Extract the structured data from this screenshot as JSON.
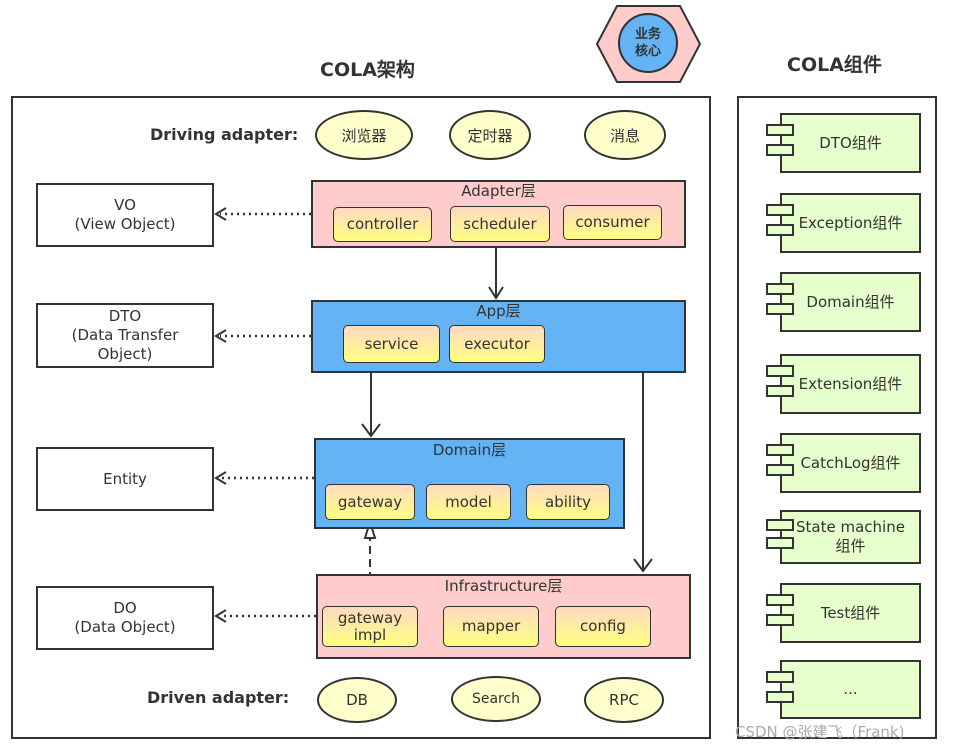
{
  "architecture": {
    "title": "COLA架构",
    "core_badge": "业务\n核心",
    "driving_label": "Driving adapter:",
    "driving": [
      "浏览器",
      "定时器",
      "消息"
    ],
    "driven_label": "Driven adapter:",
    "driven": [
      "DB",
      "Search",
      "RPC"
    ],
    "layers": [
      {
        "title": "Adapter层",
        "items": [
          "controller",
          "scheduler",
          "consumer"
        ],
        "side": "VO\n(View Object)"
      },
      {
        "title": "App层",
        "items": [
          "service",
          "executor"
        ],
        "side": "DTO\n(Data Transfer\nObject)"
      },
      {
        "title": "Domain层",
        "items": [
          "gateway",
          "model",
          "ability"
        ],
        "side": "Entity"
      },
      {
        "title": "Infrastructure层",
        "items": [
          "gateway\nimpl",
          "mapper",
          "config"
        ],
        "side": "DO\n(Data Object)"
      }
    ]
  },
  "components": {
    "title": "COLA组件",
    "items": [
      "DTO组件",
      "Exception组件",
      "Domain组件",
      "Extension组件",
      "CatchLog组件",
      "State machine\n组件",
      "Test组件",
      "..."
    ]
  },
  "watermark": "CSDN @张建飞（Frank)",
  "colors": {
    "adapter": "#ffcccc",
    "app": "#63b3f5",
    "domain": "#63b3f5",
    "infra": "#ffcccc",
    "component": "#e6ffcc",
    "ellipse": "#ffffcc"
  }
}
